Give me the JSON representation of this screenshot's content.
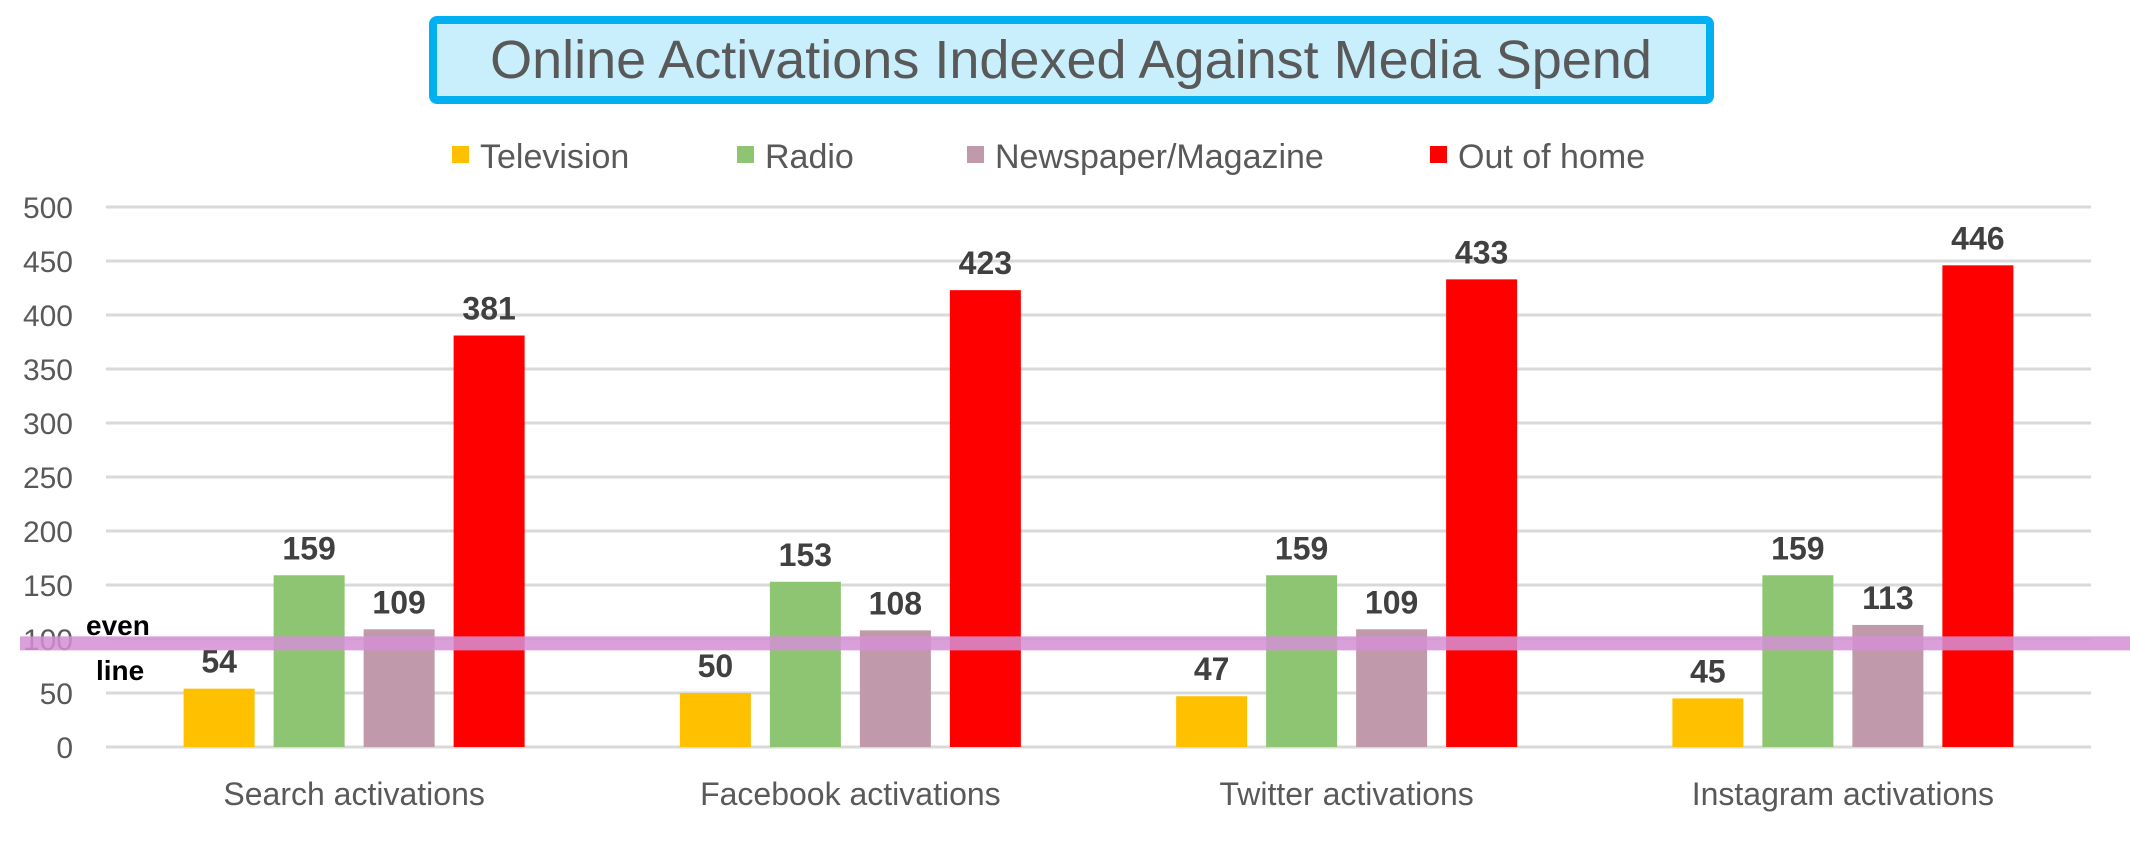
{
  "chart_data": {
    "type": "bar",
    "title": "Online Activations Indexed Against Media Spend",
    "categories": [
      "Search activations",
      "Facebook activations",
      "Twitter activations",
      "Instagram activations"
    ],
    "series": [
      {
        "name": "Television",
        "color": "#ffc000",
        "values": [
          54,
          50,
          47,
          45
        ]
      },
      {
        "name": "Radio",
        "color": "#8dc572",
        "values": [
          159,
          153,
          159,
          159
        ]
      },
      {
        "name": "Newspaper/Magazine",
        "color": "#c09aaa",
        "values": [
          109,
          108,
          109,
          113
        ]
      },
      {
        "name": "Out of home",
        "color": "#ff0000",
        "values": [
          381,
          423,
          433,
          446
        ]
      }
    ],
    "ylim": [
      0,
      500
    ],
    "yticks": [
      0,
      50,
      100,
      150,
      200,
      250,
      300,
      350,
      400,
      450,
      500
    ],
    "grid": true,
    "legend": "top",
    "data_labels": true,
    "reference_line": {
      "label_line1": "even",
      "label_line2": "line",
      "value": 96,
      "color": "#d58fd5"
    },
    "title_box": {
      "fill": "#c9eefc",
      "border": "#00b0f0"
    }
  }
}
